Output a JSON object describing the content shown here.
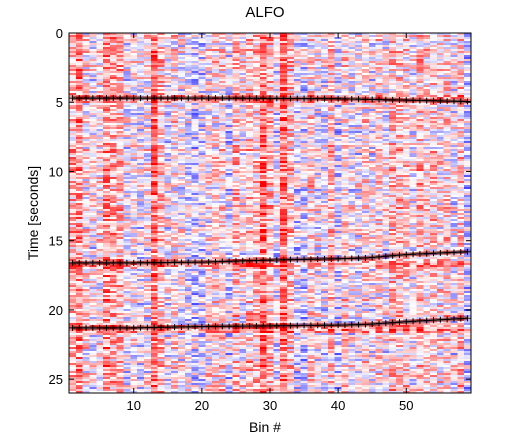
{
  "chart_data": {
    "type": "heatmap",
    "title": "ALFO",
    "xlabel": "Bin #",
    "ylabel": "Time [seconds]",
    "xlim": [
      0.5,
      59.5
    ],
    "ylim": [
      0,
      26
    ],
    "y_reversed": true,
    "x_ticks": [
      10,
      20,
      30,
      40,
      50
    ],
    "y_ticks": [
      0,
      5,
      10,
      15,
      20,
      25
    ],
    "colormap": {
      "low": "#0000ff",
      "mid": "#ffffff",
      "high": "#ff0000"
    },
    "line_color": "#000000",
    "overlay_lines": [
      {
        "x": [
          1,
          10,
          20,
          30,
          40,
          50,
          59
        ],
        "y": [
          4.7,
          4.7,
          4.7,
          4.72,
          4.75,
          4.85,
          4.95
        ]
      },
      {
        "x": [
          1,
          10,
          20,
          30,
          40,
          44,
          50,
          59
        ],
        "y": [
          16.6,
          16.6,
          16.55,
          16.4,
          16.3,
          16.25,
          16.0,
          15.8
        ]
      },
      {
        "x": [
          1,
          10,
          20,
          30,
          40,
          44,
          50,
          59
        ],
        "y": [
          21.3,
          21.3,
          21.2,
          21.15,
          21.1,
          21.05,
          20.85,
          20.6
        ]
      }
    ]
  }
}
